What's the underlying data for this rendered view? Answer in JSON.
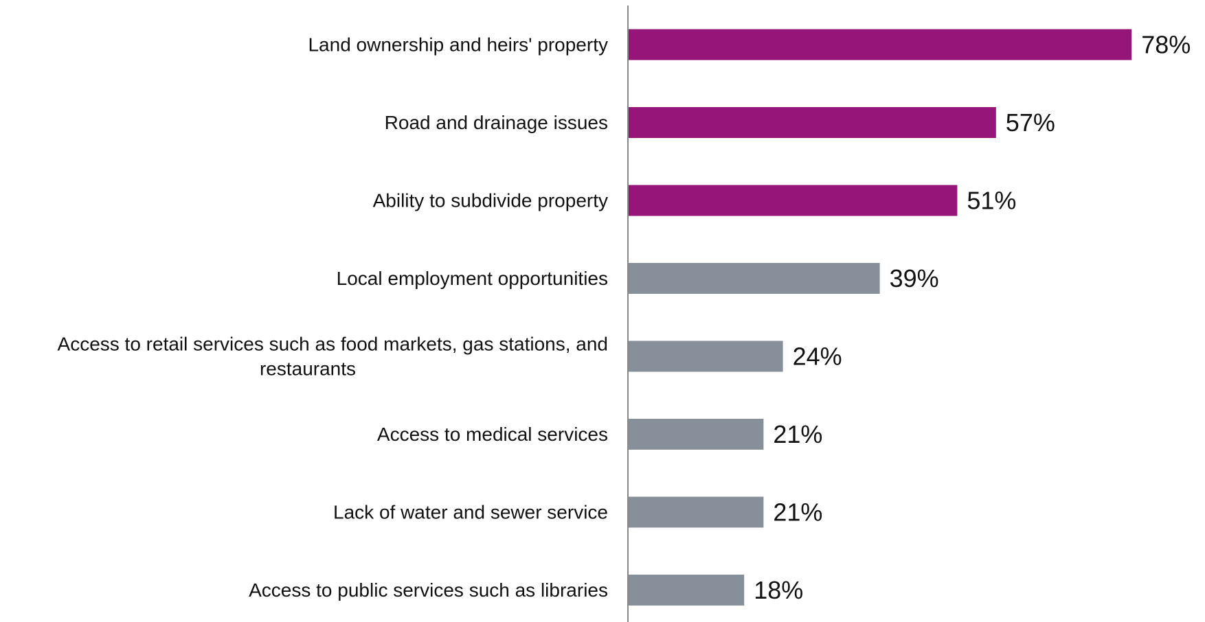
{
  "chart_data": {
    "type": "bar",
    "orientation": "horizontal",
    "categories": [
      "Land ownership and heirs' property",
      "Road and drainage issues",
      "Ability to subdivide property",
      "Local employment opportunities",
      "Access to retail services such as food markets, gas stations, and restaurants",
      "Access to medical services",
      "Lack of water and sewer service",
      "Access to public services such as libraries"
    ],
    "category_lines": [
      [
        "Land ownership and heirs' property"
      ],
      [
        "Road and drainage issues"
      ],
      [
        "Ability to subdivide property"
      ],
      [
        "Local employment opportunities"
      ],
      [
        "Access to retail services such as food markets, gas stations, and",
        "restaurants"
      ],
      [
        "Access to medical services"
      ],
      [
        "Lack of water and sewer service"
      ],
      [
        "Access to public services such as libraries"
      ]
    ],
    "values": [
      78,
      57,
      51,
      39,
      24,
      21,
      21,
      18
    ],
    "value_labels": [
      "78%",
      "57%",
      "51%",
      "39%",
      "24%",
      "21%",
      "21%",
      "18%"
    ],
    "highlighted": [
      true,
      true,
      true,
      false,
      false,
      false,
      false,
      false
    ],
    "unit": "%",
    "title": "",
    "xlabel": "",
    "ylabel": "",
    "xlim": [
      0,
      80
    ],
    "grid": false,
    "legend": "none",
    "colors": {
      "highlight": "#951578",
      "default": "#878f9b",
      "axis": "#888888",
      "text": "#111111"
    }
  }
}
